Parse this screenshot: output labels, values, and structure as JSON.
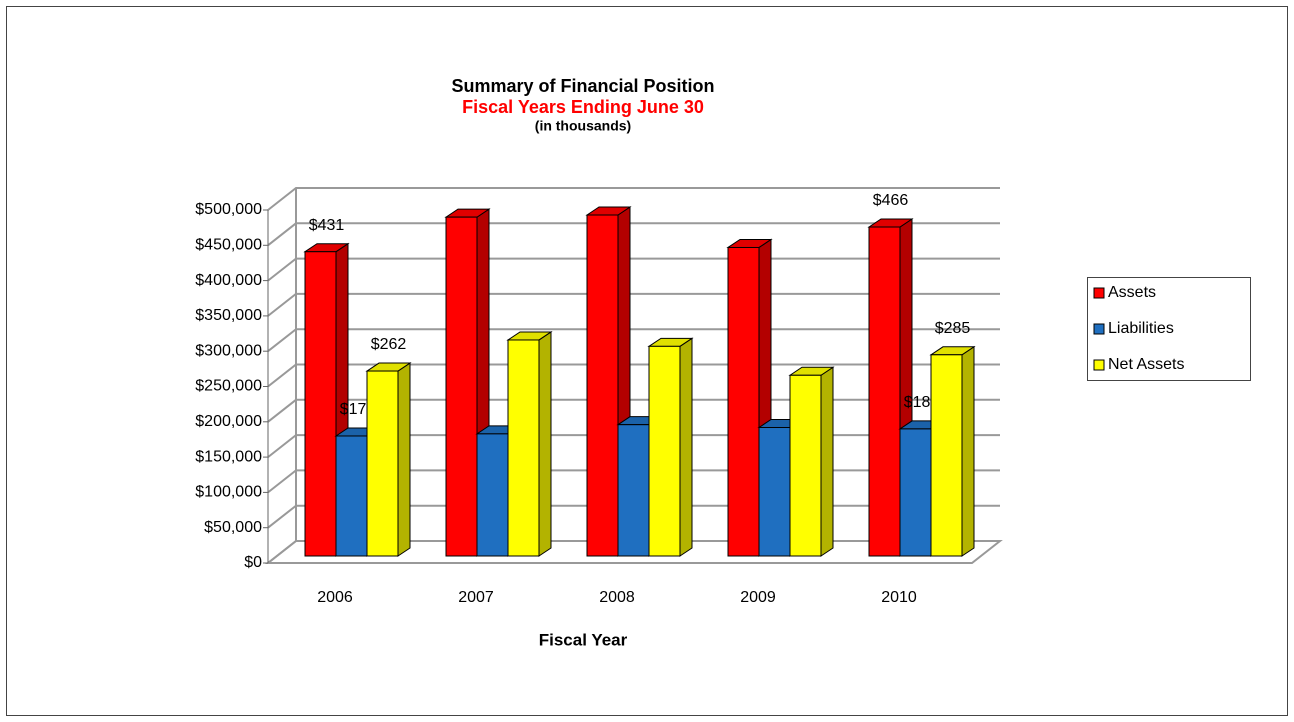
{
  "chart_data": {
    "type": "bar3d",
    "title": "Summary of Financial Position",
    "subtitle": "Fiscal Years Ending June 30",
    "note": "(in thousands)",
    "x_label": "Fiscal Year",
    "categories": [
      "2006",
      "2007",
      "2008",
      "2009",
      "2010"
    ],
    "series": [
      {
        "name": "Assets",
        "color": "#ff0000",
        "values": [
          431000,
          480000,
          483000,
          437000,
          466000
        ],
        "value_labels": [
          "$431",
          null,
          null,
          null,
          "$466"
        ]
      },
      {
        "name": "Liabilities",
        "color": "#1f6fc0",
        "values": [
          170000,
          173000,
          186000,
          182000,
          180000
        ],
        "value_labels": [
          "$170",
          null,
          null,
          null,
          "$180"
        ]
      },
      {
        "name": "Net Assets",
        "color": "#ffff00",
        "values": [
          262000,
          306000,
          297000,
          256000,
          285000
        ],
        "value_labels": [
          "$262",
          null,
          null,
          null,
          "$285"
        ]
      }
    ],
    "ylim": [
      0,
      500000
    ],
    "yticks": [
      {
        "value": 0,
        "label": "$0"
      },
      {
        "value": 50000,
        "label": "$50,000"
      },
      {
        "value": 100000,
        "label": "$100,000"
      },
      {
        "value": 150000,
        "label": "$150,000"
      },
      {
        "value": 200000,
        "label": "$200,000"
      },
      {
        "value": 250000,
        "label": "$250,000"
      },
      {
        "value": 300000,
        "label": "$300,000"
      },
      {
        "value": 350000,
        "label": "$350,000"
      },
      {
        "value": 400000,
        "label": "$400,000"
      },
      {
        "value": 450000,
        "label": "$450,000"
      },
      {
        "value": 500000,
        "label": "$500,000"
      }
    ],
    "grid": true,
    "legend": "right"
  }
}
